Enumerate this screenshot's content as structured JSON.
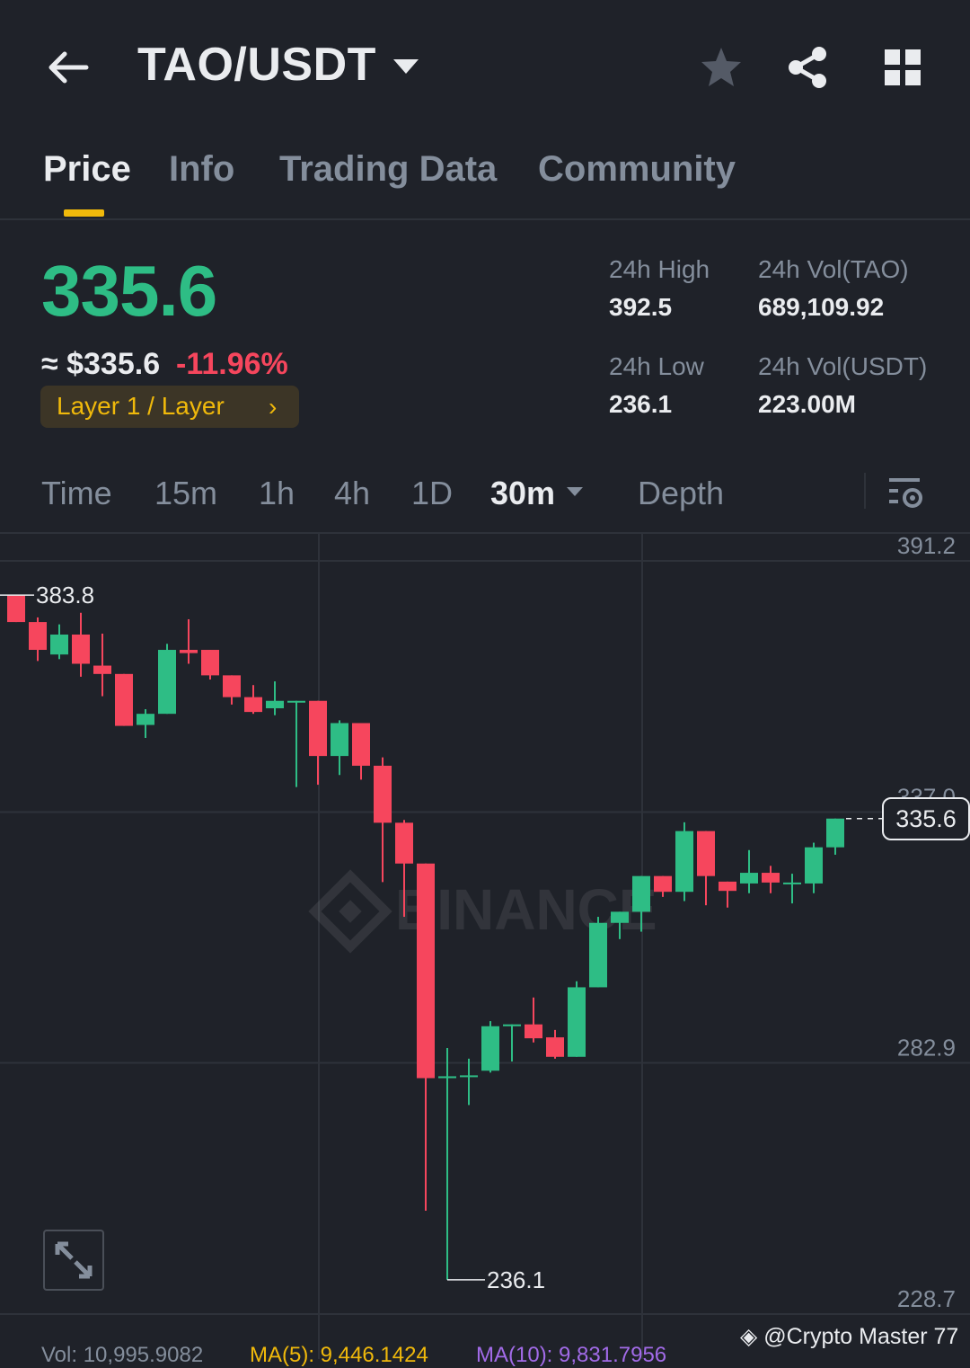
{
  "header": {
    "pair": "TAO/USDT"
  },
  "tabs": [
    {
      "label": "Price",
      "active": true
    },
    {
      "label": "Info",
      "active": false
    },
    {
      "label": "Trading Data",
      "active": false
    },
    {
      "label": "Community",
      "active": false
    }
  ],
  "ticker": {
    "last_price": "335.6",
    "usd_price": "≈ $335.6",
    "change": "-11.96%",
    "tag": "Layer 1 / Layer",
    "stats": {
      "high_label": "24h High",
      "high": "392.5",
      "vol_tao_label": "24h Vol(TAO)",
      "vol_tao": "689,109.92",
      "low_label": "24h Low",
      "low": "236.1",
      "vol_usdt_label": "24h Vol(USDT)",
      "vol_usdt": "223.00M"
    }
  },
  "intervals": [
    {
      "label": "Time"
    },
    {
      "label": "15m"
    },
    {
      "label": "1h"
    },
    {
      "label": "4h"
    },
    {
      "label": "1D"
    },
    {
      "label": "30m",
      "active": true
    },
    {
      "label": "Depth"
    }
  ],
  "colors": {
    "up": "#2ebd85",
    "down": "#f6465d",
    "accent": "#f0b90b",
    "background": "#1f2229"
  },
  "chart_data": {
    "type": "candlestick",
    "interval": "30m",
    "ylim": [
      228.7,
      391.2
    ],
    "y_ticks": [
      "391.2",
      "337.0",
      "282.9",
      "228.7"
    ],
    "annotations": {
      "high_marker": "383.8",
      "low_marker": "236.1",
      "last_price": "335.6"
    },
    "watermark": "BINANCE",
    "candles": [
      {
        "o": 383.8,
        "h": 383.8,
        "c": 378.0
      },
      {
        "o": 378.0,
        "h": 379.0,
        "l": 369.6,
        "c": 372.0
      },
      {
        "o": 371.0,
        "h": 377.5,
        "l": 370.0,
        "c": 375.3
      },
      {
        "o": 375.3,
        "h": 380.0,
        "l": 366.2,
        "c": 369.0
      },
      {
        "o": 368.6,
        "h": 375.5,
        "l": 362.0,
        "c": 366.8
      },
      {
        "o": 366.8,
        "h": 366.8,
        "l": 355.6,
        "c": 355.6
      },
      {
        "o": 355.8,
        "h": 359.2,
        "l": 353.0,
        "c": 358.2
      },
      {
        "o": 358.2,
        "h": 373.3,
        "l": 358.2,
        "c": 372.0
      },
      {
        "o": 372.0,
        "h": 378.6,
        "l": 369.0,
        "c": 371.3
      },
      {
        "o": 372.0,
        "h": 372.0,
        "l": 365.6,
        "c": 366.5
      },
      {
        "o": 366.5,
        "h": 366.5,
        "l": 360.2,
        "c": 361.8
      },
      {
        "o": 361.8,
        "h": 364.4,
        "l": 358.2,
        "c": 358.6
      },
      {
        "o": 359.4,
        "h": 365.2,
        "l": 357.9,
        "c": 361.0
      },
      {
        "o": 361.0,
        "h": 361.0,
        "l": 342.4,
        "c": 361.0
      },
      {
        "o": 361.0,
        "h": 361.0,
        "l": 342.9,
        "c": 349.1
      },
      {
        "o": 349.1,
        "h": 356.8,
        "l": 345.0,
        "c": 356.2
      },
      {
        "o": 356.2,
        "h": 356.2,
        "l": 344.0,
        "c": 347.0
      },
      {
        "o": 347.0,
        "h": 348.8,
        "l": 321.9,
        "c": 334.7
      },
      {
        "o": 334.7,
        "h": 335.3,
        "l": 314.4,
        "c": 325.9
      },
      {
        "o": 325.9,
        "h": 325.9,
        "l": 251.0,
        "c": 279.6
      },
      {
        "o": 279.6,
        "h": 286.1,
        "l": 236.1,
        "c": 280.0
      },
      {
        "o": 280.0,
        "h": 283.8,
        "l": 273.8,
        "c": 280.2
      },
      {
        "o": 281.2,
        "h": 291.9,
        "l": 280.8,
        "c": 290.8
      },
      {
        "o": 290.8,
        "h": 289.7,
        "l": 283.2,
        "c": 291.2
      },
      {
        "o": 291.2,
        "h": 297.0,
        "l": 287.3,
        "c": 288.2
      },
      {
        "o": 288.4,
        "h": 290.0,
        "l": 283.8,
        "c": 284.2
      },
      {
        "o": 284.2,
        "h": 300.5,
        "l": 284.4,
        "c": 299.2
      },
      {
        "o": 299.2,
        "h": 314.4,
        "l": 299.2,
        "c": 313.1
      },
      {
        "o": 313.1,
        "h": 315.4,
        "l": 309.6,
        "c": 315.5
      },
      {
        "o": 315.5,
        "h": 322.6,
        "l": 311.2,
        "c": 323.2
      },
      {
        "o": 323.2,
        "h": 323.2,
        "l": 318.7,
        "c": 319.8
      },
      {
        "o": 319.8,
        "h": 334.8,
        "l": 317.8,
        "c": 332.9
      },
      {
        "o": 332.9,
        "h": 332.9,
        "l": 316.9,
        "c": 323.2
      },
      {
        "o": 322.0,
        "h": 322.0,
        "l": 316.4,
        "c": 320.0
      },
      {
        "o": 321.6,
        "h": 328.8,
        "l": 319.5,
        "c": 323.9
      },
      {
        "o": 323.9,
        "h": 325.4,
        "l": 319.5,
        "c": 321.8
      },
      {
        "o": 321.8,
        "h": 323.7,
        "l": 317.3,
        "c": 321.8
      },
      {
        "o": 321.6,
        "h": 330.4,
        "l": 319.5,
        "c": 329.4
      },
      {
        "o": 329.4,
        "h": 335.6,
        "l": 327.8,
        "c": 335.6
      }
    ]
  },
  "indicators": {
    "vol": "Vol: 10,995.9082",
    "ma5": "MA(5): 9,446.1424",
    "ma10": "MA(10): 9,831.7956"
  },
  "credit": "@Crypto Master 77"
}
